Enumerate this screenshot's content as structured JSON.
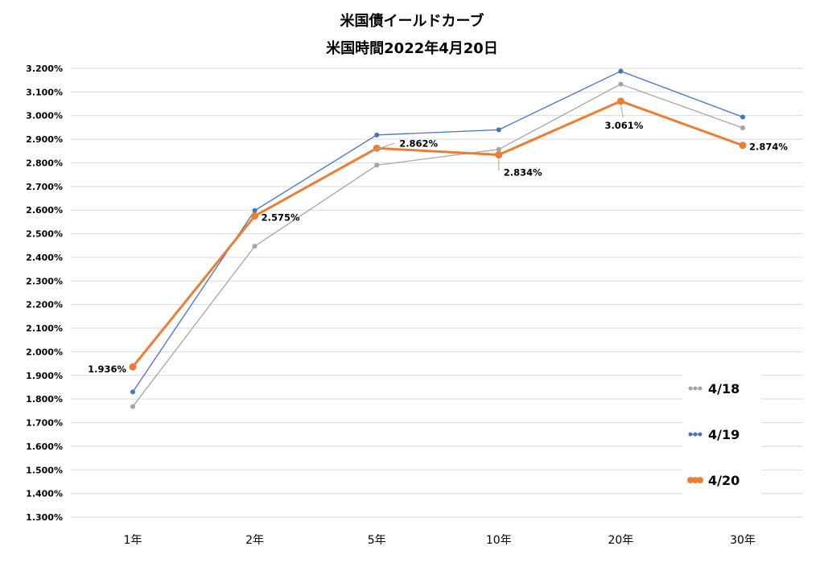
{
  "chart_data": {
    "type": "line",
    "title": "米国債イールドカーブ",
    "subtitle": "米国時間2022年4月20日",
    "categories": [
      "1年",
      "2年",
      "5年",
      "10年",
      "20年",
      "30年"
    ],
    "ylim": [
      1.3,
      3.2
    ],
    "ytick_step": 0.1,
    "ytick_format": "%.3f%%",
    "grid": true,
    "legend_position": "right",
    "series": [
      {
        "name": "4/18",
        "color": "#A5A5A5",
        "values": [
          1.768,
          2.447,
          2.79,
          2.857,
          3.133,
          2.948
        ]
      },
      {
        "name": "4/19",
        "color": "#4472C4",
        "values": [
          1.83,
          2.598,
          2.918,
          2.94,
          3.188,
          2.994
        ]
      },
      {
        "name": "4/20",
        "color": "#ED7D31",
        "values": [
          1.936,
          2.575,
          2.862,
          2.834,
          3.061,
          2.874
        ]
      }
    ],
    "data_labels": [
      "1.936%",
      "2.575%",
      "2.862%",
      "2.834%",
      "3.061%",
      "2.874%"
    ]
  }
}
